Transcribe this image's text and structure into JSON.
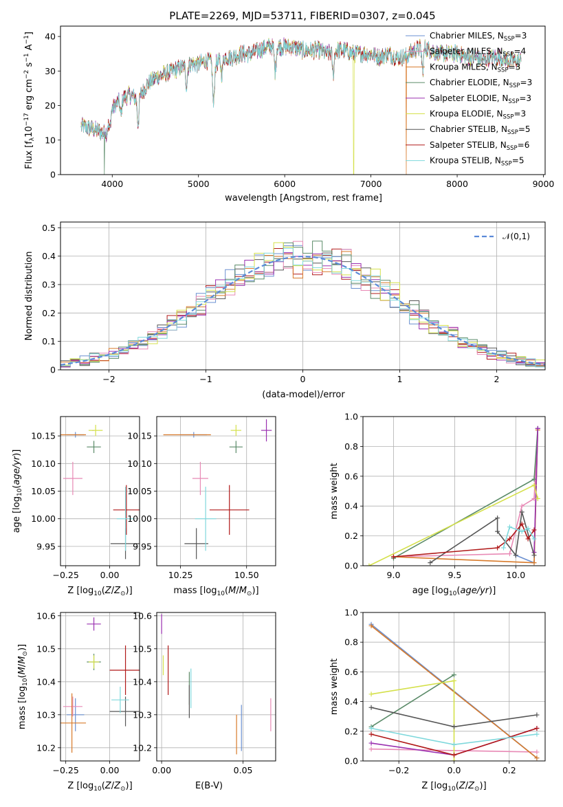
{
  "figure": {
    "title": "PLATE=2269, MJD=53711, FIBERID=0307, z=0.045"
  },
  "models": [
    {
      "label": "Chabrier MILES, N_SSP=3",
      "name": "Chabrier MILES, N",
      "sub": "SSP",
      "tail": "=3",
      "color": "#6a8fd0"
    },
    {
      "label": "Salpeter MILES, N_SSP=4",
      "name": "Salpeter MILES, N",
      "sub": "SSP",
      "tail": "=4",
      "color": "#e889b5"
    },
    {
      "label": "Kroupa MILES, N_SSP=3",
      "name": "Kroupa MILES, N",
      "sub": "SSP",
      "tail": "=3",
      "color": "#d87a2a"
    },
    {
      "label": "Chabrier ELODIE, N_SSP=3",
      "name": "Chabrier ELODIE, N",
      "sub": "SSP",
      "tail": "=3",
      "color": "#5a8a68"
    },
    {
      "label": "Salpeter ELODIE, N_SSP=3",
      "name": "Salpeter ELODIE, N",
      "sub": "SSP",
      "tail": "=3",
      "color": "#9a30b0"
    },
    {
      "label": "Kroupa ELODIE, N_SSP=3",
      "name": "Kroupa ELODIE, N",
      "sub": "SSP",
      "tail": "=3",
      "color": "#d4e04a"
    },
    {
      "label": "Chabrier STELIB, N_SSP=5",
      "name": "Chabrier STELIB, N",
      "sub": "SSP",
      "tail": "=5",
      "color": "#555555"
    },
    {
      "label": "Salpeter STELIB, N_SSP=6",
      "name": "Salpeter STELIB, N",
      "sub": "SSP",
      "tail": "=6",
      "color": "#b01818"
    },
    {
      "label": "Kroupa STELIB, N_SSP=5",
      "name": "Kroupa STELIB, N",
      "sub": "SSP",
      "tail": "=5",
      "color": "#7ed8dc"
    }
  ],
  "chart_data": [
    {
      "id": "spectrum",
      "type": "line",
      "title": "PLATE=2269, MJD=53711, FIBERID=0307, z=0.045",
      "xlabel": "wavelength [Angstrom, rest frame]",
      "ylabel": "Flux [f_λ 10^-17 erg cm^-2 s^-1 A^-1]",
      "xlim": [
        3400,
        9020
      ],
      "ylim": [
        0,
        43
      ],
      "xticks": [
        4000,
        5000,
        6000,
        7000,
        8000,
        9000
      ],
      "yticks": [
        0,
        10,
        20,
        30,
        40
      ],
      "grid": false,
      "legend": "top-right",
      "series_note": "nine model fits overplotted on the observed spectrum",
      "continuum": [
        [
          3650,
          14
        ],
        [
          3800,
          13
        ],
        [
          3900,
          12
        ],
        [
          4000,
          19
        ],
        [
          4100,
          22
        ],
        [
          4200,
          23
        ],
        [
          4300,
          22
        ],
        [
          4400,
          26
        ],
        [
          4500,
          28
        ],
        [
          4600,
          29
        ],
        [
          4700,
          30
        ],
        [
          4800,
          31
        ],
        [
          4900,
          32
        ],
        [
          5000,
          32
        ],
        [
          5100,
          33
        ],
        [
          5200,
          32
        ],
        [
          5300,
          34
        ],
        [
          5400,
          34
        ],
        [
          5500,
          35
        ],
        [
          5600,
          35
        ],
        [
          5700,
          36
        ],
        [
          5800,
          37
        ],
        [
          5900,
          37
        ],
        [
          6000,
          37
        ],
        [
          6100,
          37
        ],
        [
          6200,
          36
        ],
        [
          6300,
          36
        ],
        [
          6400,
          36
        ],
        [
          6500,
          35
        ],
        [
          6600,
          36
        ],
        [
          6700,
          36
        ],
        [
          6800,
          35
        ],
        [
          6900,
          35
        ],
        [
          7000,
          35
        ],
        [
          7100,
          34
        ],
        [
          7200,
          35
        ],
        [
          7300,
          34
        ],
        [
          7400,
          34
        ],
        [
          7500,
          36
        ],
        [
          7600,
          37
        ],
        [
          7700,
          36
        ],
        [
          7800,
          35
        ],
        [
          7900,
          35
        ],
        [
          8000,
          35
        ],
        [
          8100,
          34
        ],
        [
          8200,
          34
        ],
        [
          8300,
          33
        ],
        [
          8400,
          34
        ],
        [
          8500,
          34
        ],
        [
          8600,
          33
        ],
        [
          8700,
          33
        ]
      ],
      "absorption": [
        [
          3933,
          12
        ],
        [
          3968,
          13
        ],
        [
          4101,
          17
        ],
        [
          4300,
          15
        ],
        [
          4861,
          26
        ],
        [
          5175,
          20
        ],
        [
          5270,
          29
        ],
        [
          5890,
          30
        ],
        [
          6563,
          29
        ],
        [
          7600,
          30
        ]
      ],
      "dropouts": [
        {
          "x": 3910,
          "model": 3
        },
        {
          "x": 6800,
          "model": 5
        },
        {
          "x": 7410,
          "model": 2
        }
      ],
      "wave_range": [
        3640,
        8740
      ]
    },
    {
      "id": "residuals",
      "type": "histogram",
      "xlabel": "(data-model)/error",
      "ylabel": "Normed distribution",
      "xlim": [
        -2.5,
        2.5
      ],
      "ylim": [
        0,
        0.52
      ],
      "xticks": [
        -2,
        -1,
        0,
        1,
        2
      ],
      "yticks": [
        0,
        0.1,
        0.2,
        0.3,
        0.4,
        0.5
      ],
      "grid": true,
      "legend": "top-right",
      "reference_label": "𝒩(0,1)",
      "reference_color": "#5b8ad8",
      "bin_width": 0.1
    },
    {
      "id": "age-vs-Z",
      "type": "errorbar",
      "xlabel": "Z [log10(Z/Z☉)]",
      "ylabel": "age [log10(age/yr)]",
      "xlim": [
        -0.28,
        0.17
      ],
      "ylim": [
        9.915,
        10.185
      ],
      "xticks": [
        -0.25,
        0.0
      ],
      "yticks": [
        9.95,
        10.0,
        10.05,
        10.1,
        10.15
      ],
      "grid": true,
      "points": [
        {
          "model": 0,
          "x": -0.195,
          "y": 10.152,
          "xerr": 0.05,
          "yerr": 0.005
        },
        {
          "model": 1,
          "x": -0.21,
          "y": 10.073,
          "xerr": 0.055,
          "yerr": 0.03
        },
        {
          "model": 2,
          "x": -0.215,
          "y": 10.152,
          "xerr": 0.08,
          "yerr": 0.0
        },
        {
          "model": 3,
          "x": -0.09,
          "y": 10.13,
          "xerr": 0.04,
          "yerr": 0.011
        },
        {
          "model": 4,
          "x": -0.095,
          "y": 10.16,
          "xerr": 0.005,
          "yerr": 0.0
        },
        {
          "model": 5,
          "x": -0.08,
          "y": 10.16,
          "xerr": 0.04,
          "yerr": 0.01
        },
        {
          "model": 6,
          "x": 0.09,
          "y": 9.955,
          "xerr": 0.085,
          "yerr": 0.028
        },
        {
          "model": 7,
          "x": 0.095,
          "y": 10.016,
          "xerr": 0.075,
          "yerr": 0.045
        },
        {
          "model": 8,
          "x": 0.09,
          "y": 10.0,
          "xerr": 0.05,
          "yerr": 0.058
        }
      ]
    },
    {
      "id": "age-vs-mass",
      "type": "errorbar",
      "xlabel": "mass [log10(M/M☉)]",
      "ylabel": "",
      "xlim": [
        10.16,
        10.61
      ],
      "ylim": [
        9.915,
        10.185
      ],
      "xticks": [
        10.25,
        10.5
      ],
      "yticks": [
        9.95,
        10.0,
        10.05,
        10.1,
        10.15
      ],
      "grid": true,
      "points": [
        {
          "model": 0,
          "x": 10.3,
          "y": 10.152,
          "xerr": 0.05,
          "yerr": 0.005
        },
        {
          "model": 1,
          "x": 10.325,
          "y": 10.073,
          "xerr": 0.03,
          "yerr": 0.03
        },
        {
          "model": 2,
          "x": 10.275,
          "y": 10.152,
          "xerr": 0.09,
          "yerr": 0.0
        },
        {
          "model": 3,
          "x": 10.46,
          "y": 10.13,
          "xerr": 0.025,
          "yerr": 0.011
        },
        {
          "model": 4,
          "x": 10.575,
          "y": 10.16,
          "xerr": 0.02,
          "yerr": 0.02
        },
        {
          "model": 5,
          "x": 10.46,
          "y": 10.16,
          "xerr": 0.02,
          "yerr": 0.01
        },
        {
          "model": 6,
          "x": 10.31,
          "y": 9.955,
          "xerr": 0.045,
          "yerr": 0.028
        },
        {
          "model": 7,
          "x": 10.435,
          "y": 10.016,
          "xerr": 0.075,
          "yerr": 0.045
        },
        {
          "model": 8,
          "x": 10.345,
          "y": 10.0,
          "xerr": 0.04,
          "yerr": 0.058
        }
      ]
    },
    {
      "id": "weight-vs-age",
      "type": "line",
      "xlabel": "age [log10(age/yr)]",
      "ylabel": "mass weight",
      "xlim": [
        8.75,
        10.24
      ],
      "ylim": [
        0,
        1.0
      ],
      "xticks": [
        9.0,
        9.5,
        10.0
      ],
      "yticks": [
        0.0,
        0.2,
        0.4,
        0.6,
        0.8,
        1.0
      ],
      "grid": true,
      "series": [
        {
          "model": 0,
          "points": [
            [
              10.0,
              0.07
            ],
            [
              10.15,
              0.02
            ],
            [
              10.18,
              0.92
            ]
          ]
        },
        {
          "model": 1,
          "points": [
            [
              9.0,
              0.06
            ],
            [
              9.95,
              0.08
            ],
            [
              10.05,
              0.4
            ],
            [
              10.15,
              0.45
            ],
            [
              10.18,
              0.92
            ]
          ]
        },
        {
          "model": 2,
          "points": [
            [
              9.0,
              0.06
            ],
            [
              10.15,
              0.02
            ],
            [
              10.18,
              0.91
            ]
          ]
        },
        {
          "model": 3,
          "points": [
            [
              9.0,
              0.05
            ],
            [
              10.15,
              0.58
            ],
            [
              10.18,
              0.92
            ]
          ]
        },
        {
          "model": 4,
          "points": [
            [
              10.15,
              0.09
            ],
            [
              10.18,
              0.92
            ]
          ]
        },
        {
          "model": 5,
          "points": [
            [
              8.8,
              0.0
            ],
            [
              10.15,
              0.54
            ],
            [
              10.18,
              0.45
            ]
          ]
        },
        {
          "model": 6,
          "points": [
            [
              9.3,
              0.02
            ],
            [
              9.85,
              0.32
            ],
            [
              9.85,
              0.23
            ],
            [
              10.0,
              0.07
            ],
            [
              10.05,
              0.36
            ],
            [
              10.15,
              0.07
            ]
          ]
        },
        {
          "model": 7,
          "points": [
            [
              9.0,
              0.06
            ],
            [
              9.85,
              0.12
            ],
            [
              9.95,
              0.18
            ],
            [
              10.05,
              0.28
            ],
            [
              10.1,
              0.18
            ],
            [
              10.15,
              0.24
            ]
          ]
        },
        {
          "model": 8,
          "points": [
            [
              9.9,
              0.12
            ],
            [
              9.95,
              0.26
            ],
            [
              10.05,
              0.23
            ],
            [
              10.1,
              0.25
            ],
            [
              10.15,
              0.18
            ]
          ]
        }
      ]
    },
    {
      "id": "mass-vs-Z",
      "type": "errorbar",
      "xlabel": "Z [log10(Z/Z☉)]",
      "ylabel": "mass [log10(M/M☉)]",
      "xlim": [
        -0.28,
        0.17
      ],
      "ylim": [
        10.16,
        10.61
      ],
      "xticks": [
        -0.25,
        0.0
      ],
      "yticks": [
        10.2,
        10.3,
        10.4,
        10.5,
        10.6
      ],
      "grid": true,
      "points": [
        {
          "model": 0,
          "x": -0.195,
          "y": 10.3,
          "xerr": 0.05,
          "yerr": 0.05
        },
        {
          "model": 1,
          "x": -0.21,
          "y": 10.325,
          "xerr": 0.055,
          "yerr": 0.03
        },
        {
          "model": 2,
          "x": -0.215,
          "y": 10.275,
          "xerr": 0.08,
          "yerr": 0.09
        },
        {
          "model": 3,
          "x": -0.09,
          "y": 10.46,
          "xerr": 0.04,
          "yerr": 0.025
        },
        {
          "model": 4,
          "x": -0.09,
          "y": 10.575,
          "xerr": 0.04,
          "yerr": 0.02
        },
        {
          "model": 5,
          "x": -0.09,
          "y": 10.46,
          "xerr": 0.03,
          "yerr": 0.02
        },
        {
          "model": 6,
          "x": 0.09,
          "y": 10.31,
          "xerr": 0.09,
          "yerr": 0.045
        },
        {
          "model": 7,
          "x": 0.09,
          "y": 10.435,
          "xerr": 0.09,
          "yerr": 0.075
        },
        {
          "model": 8,
          "x": 0.06,
          "y": 10.345,
          "xerr": 0.05,
          "yerr": 0.04
        }
      ]
    },
    {
      "id": "mass-vs-EBV",
      "type": "errorbar",
      "xlabel": "E(B-V)",
      "ylabel": "",
      "xlim": [
        -0.003,
        0.07
      ],
      "ylim": [
        10.16,
        10.61
      ],
      "xticks": [
        0.0,
        0.05
      ],
      "yticks": [
        10.2,
        10.3,
        10.4,
        10.5,
        10.6
      ],
      "grid": true,
      "points": [
        {
          "model": 0,
          "x": 0.049,
          "y": 10.26,
          "xerr": 0.0,
          "yerr": 0.07
        },
        {
          "model": 1,
          "x": 0.067,
          "y": 10.3,
          "xerr": 0.0,
          "yerr": 0.05
        },
        {
          "model": 2,
          "x": 0.046,
          "y": 10.24,
          "xerr": 0.0,
          "yerr": 0.06
        },
        {
          "model": 3,
          "x": 0.017,
          "y": 10.38,
          "xerr": 0.0,
          "yerr": 0.05
        },
        {
          "model": 4,
          "x": 0.0,
          "y": 10.575,
          "xerr": 0.0,
          "yerr": 0.03
        },
        {
          "model": 5,
          "x": 0.001,
          "y": 10.45,
          "xerr": 0.0,
          "yerr": 0.03
        },
        {
          "model": 6,
          "x": 0.017,
          "y": 10.34,
          "xerr": 0.0,
          "yerr": 0.05
        },
        {
          "model": 7,
          "x": 0.004,
          "y": 10.435,
          "xerr": 0.0,
          "yerr": 0.075
        },
        {
          "model": 8,
          "x": 0.018,
          "y": 10.38,
          "xerr": 0.0,
          "yerr": 0.06
        }
      ]
    },
    {
      "id": "weight-vs-Z",
      "type": "line",
      "xlabel": "Z [log10(Z/Z☉)]",
      "ylabel": "mass weight",
      "xlim": [
        -0.33,
        0.33
      ],
      "ylim": [
        0,
        1.0
      ],
      "xticks": [
        -0.2,
        0.0,
        0.2
      ],
      "yticks": [
        0.0,
        0.2,
        0.4,
        0.6,
        0.8,
        1.0
      ],
      "grid": true,
      "series": [
        {
          "model": 0,
          "points": [
            [
              -0.3,
              0.92
            ],
            [
              0.3,
              0.02
            ]
          ]
        },
        {
          "model": 1,
          "points": [
            [
              -0.3,
              0.08
            ],
            [
              0.3,
              0.06
            ]
          ]
        },
        {
          "model": 2,
          "points": [
            [
              -0.3,
              0.91
            ],
            [
              0.3,
              0.02
            ]
          ]
        },
        {
          "model": 3,
          "points": [
            [
              -0.3,
              0.23
            ],
            [
              0.0,
              0.58
            ]
          ]
        },
        {
          "model": 4,
          "points": [
            [
              -0.3,
              0.12
            ],
            [
              0.0,
              0.04
            ],
            [
              0.3,
              0.22
            ]
          ]
        },
        {
          "model": 5,
          "points": [
            [
              -0.3,
              0.45
            ],
            [
              0.0,
              0.54
            ],
            [
              0.0,
              0.0
            ]
          ]
        },
        {
          "model": 6,
          "points": [
            [
              -0.3,
              0.36
            ],
            [
              0.0,
              0.23
            ],
            [
              0.3,
              0.31
            ]
          ]
        },
        {
          "model": 7,
          "points": [
            [
              -0.3,
              0.18
            ],
            [
              0.0,
              0.04
            ],
            [
              0.3,
              0.22
            ]
          ]
        },
        {
          "model": 8,
          "points": [
            [
              -0.3,
              0.22
            ],
            [
              0.0,
              0.11
            ],
            [
              0.3,
              0.18
            ]
          ]
        }
      ]
    }
  ]
}
